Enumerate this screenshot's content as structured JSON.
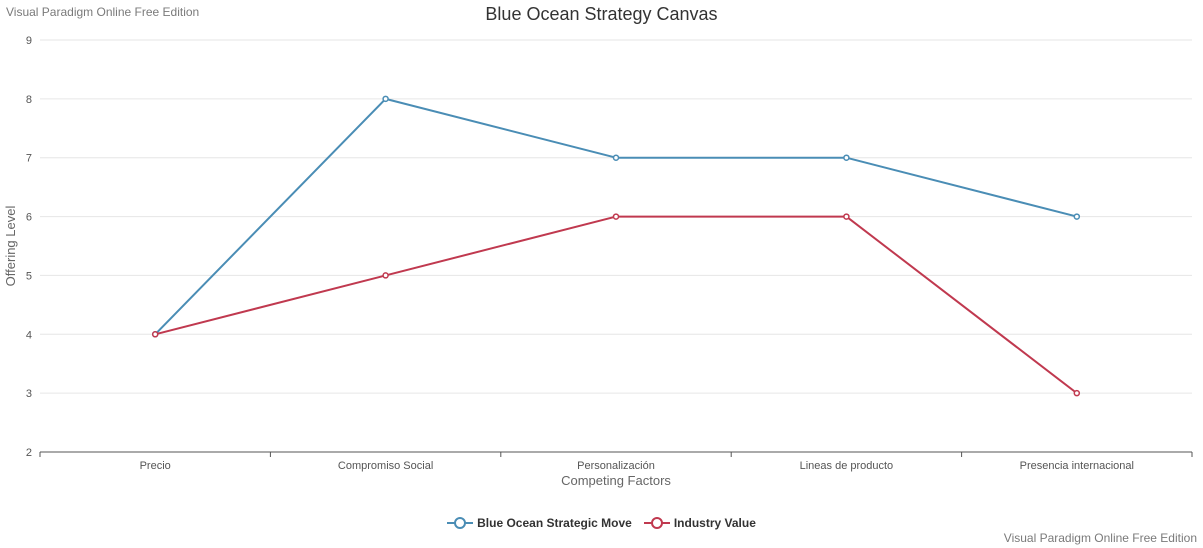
{
  "watermark_top": "Visual Paradigm Online Free Edition",
  "watermark_bottom": "Visual Paradigm Online Free Edition",
  "colors": {
    "series_1": "#4a8db5",
    "series_2": "#c0394f",
    "grid": "#e6e6e6",
    "axis": "#555555",
    "label": "#555555",
    "axis_title": "#666666"
  },
  "chart_data": {
    "type": "line",
    "title": "Blue Ocean Strategy Canvas",
    "xlabel": "Competing Factors",
    "ylabel": "Offering Level",
    "categories": [
      "Precio",
      "Compromiso Social",
      "Personalización",
      "Lineas de producto",
      "Presencia internacional"
    ],
    "ylim": [
      2,
      9
    ],
    "yticks": [
      2,
      3,
      4,
      5,
      6,
      7,
      8,
      9
    ],
    "grid": true,
    "legend_position": "bottom-center",
    "series": [
      {
        "name": "Blue Ocean Strategic Move",
        "values": [
          4,
          8,
          7,
          7,
          6
        ]
      },
      {
        "name": "Industry Value",
        "values": [
          4,
          5,
          6,
          6,
          3
        ]
      }
    ]
  }
}
